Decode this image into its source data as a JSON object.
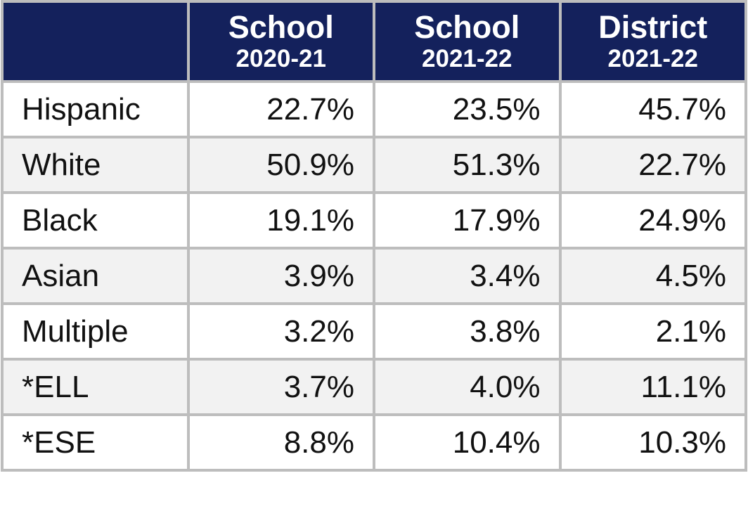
{
  "table": {
    "columns": [
      {
        "name": "School",
        "year": "2020-21"
      },
      {
        "name": "School",
        "year": "2021-22"
      },
      {
        "name": "District",
        "year": "2021-22"
      }
    ],
    "rows": [
      [
        "Hispanic",
        "22.7%",
        "23.5%",
        "45.7%"
      ],
      [
        "White",
        "50.9%",
        "51.3%",
        "22.7%"
      ],
      [
        "Black",
        "19.1%",
        "17.9%",
        "24.9%"
      ],
      [
        "Asian",
        "3.9%",
        "3.4%",
        "4.5%"
      ],
      [
        "Multiple",
        "3.2%",
        "3.8%",
        "2.1%"
      ],
      [
        "*ELL",
        "3.7%",
        "4.0%",
        "11.1%"
      ],
      [
        "*ESE",
        "8.8%",
        "10.4%",
        "10.3%"
      ]
    ]
  }
}
